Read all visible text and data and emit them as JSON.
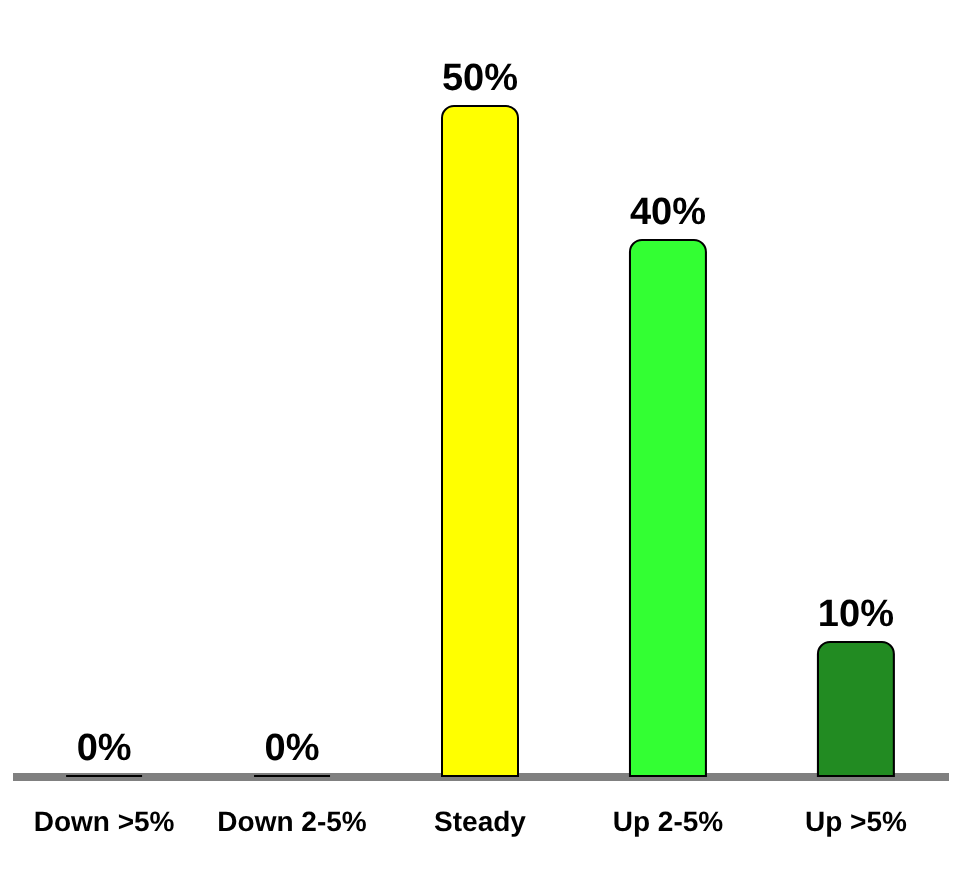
{
  "chart_data": {
    "type": "bar",
    "categories": [
      "Down >5%",
      "Down 2-5%",
      "Steady",
      "Up 2-5%",
      "Up >5%"
    ],
    "values": [
      0,
      0,
      50,
      40,
      10
    ],
    "colors": [
      "#cc0000",
      "#cc5500",
      "#ffff00",
      "#33ff33",
      "#228b22"
    ],
    "value_labels": [
      "0%",
      "0%",
      "50%",
      "40%",
      "10%"
    ],
    "tick_labels": "x"
  }
}
